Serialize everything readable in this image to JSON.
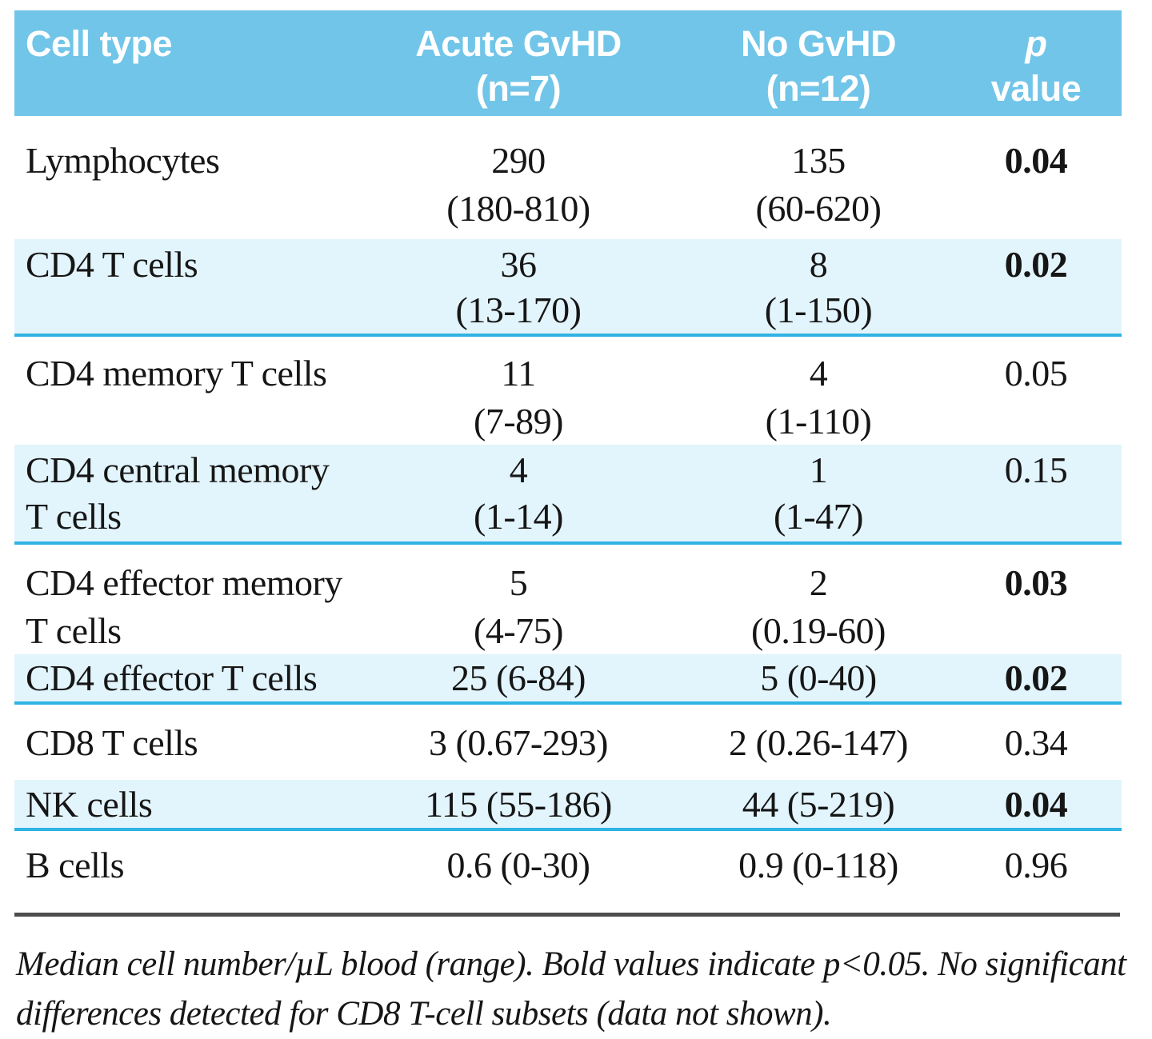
{
  "colors": {
    "header_bg": "#71c5e8",
    "shaded_bg": "#e2f4fc",
    "divider": "#2fb3e3",
    "rule": "#4d4d4d",
    "text": "#161616",
    "header_text": "#ffffff"
  },
  "chart_data": {
    "type": "table",
    "title": "",
    "columns": [
      {
        "line1": "Cell type",
        "line2": ""
      },
      {
        "line1": "Acute GvHD",
        "line2": "(n=7)"
      },
      {
        "line1": "No GvHD",
        "line2": "(n=12)"
      },
      {
        "line1": "p",
        "line2": "value"
      }
    ],
    "rows": [
      {
        "name": "Lymphocytes",
        "name2": "",
        "acute": "290",
        "acute_range": "(180-810)",
        "no_gvhd": "135",
        "no_gvhd_range": "(60-620)",
        "p": "0.04",
        "p_sig": true,
        "shaded": false
      },
      {
        "name": "CD4 T cells",
        "name2": "",
        "acute": "36",
        "acute_range": "(13-170)",
        "no_gvhd": "8",
        "no_gvhd_range": "(1-150)",
        "p": "0.02",
        "p_sig": true,
        "shaded": true
      },
      {
        "name": "CD4 memory T cells",
        "name2": "",
        "acute": "11",
        "acute_range": "(7-89)",
        "no_gvhd": "4",
        "no_gvhd_range": "(1-110)",
        "p": "0.05",
        "p_sig": false,
        "shaded": false
      },
      {
        "name": "CD4 central memory",
        "name2": "T cells",
        "acute": "4",
        "acute_range": "(1-14)",
        "no_gvhd": "1",
        "no_gvhd_range": "(1-47)",
        "p": "0.15",
        "p_sig": false,
        "shaded": true
      },
      {
        "name": "CD4 effector memory",
        "name2": "T cells",
        "acute": "5",
        "acute_range": "(4-75)",
        "no_gvhd": "2",
        "no_gvhd_range": "(0.19-60)",
        "p": "0.03",
        "p_sig": true,
        "shaded": false
      },
      {
        "name": "CD4 effector T cells",
        "name2": "",
        "acute": "25 (6-84)",
        "acute_range": "",
        "no_gvhd": "5 (0-40)",
        "no_gvhd_range": "",
        "p": "0.02",
        "p_sig": true,
        "shaded": true
      },
      {
        "name": "CD8 T cells",
        "name2": "",
        "acute": "3 (0.67-293)",
        "acute_range": "",
        "no_gvhd": "2 (0.26-147)",
        "no_gvhd_range": "",
        "p": "0.34",
        "p_sig": false,
        "shaded": false
      },
      {
        "name": "NK cells",
        "name2": "",
        "acute": "115 (55-186)",
        "acute_range": "",
        "no_gvhd": "44 (5-219)",
        "no_gvhd_range": "",
        "p": "0.04",
        "p_sig": true,
        "shaded": true
      },
      {
        "name": "B cells",
        "name2": "",
        "acute": "0.6 (0-30)",
        "acute_range": "",
        "no_gvhd": "0.9 (0-118)",
        "no_gvhd_range": "",
        "p": "0.96",
        "p_sig": false,
        "shaded": false
      }
    ],
    "footnote_line1": "Median cell number/µL blood (range). Bold values indicate p<0.05. No significant",
    "footnote_line2": "differences detected for CD8 T-cell subsets (data not shown)."
  }
}
